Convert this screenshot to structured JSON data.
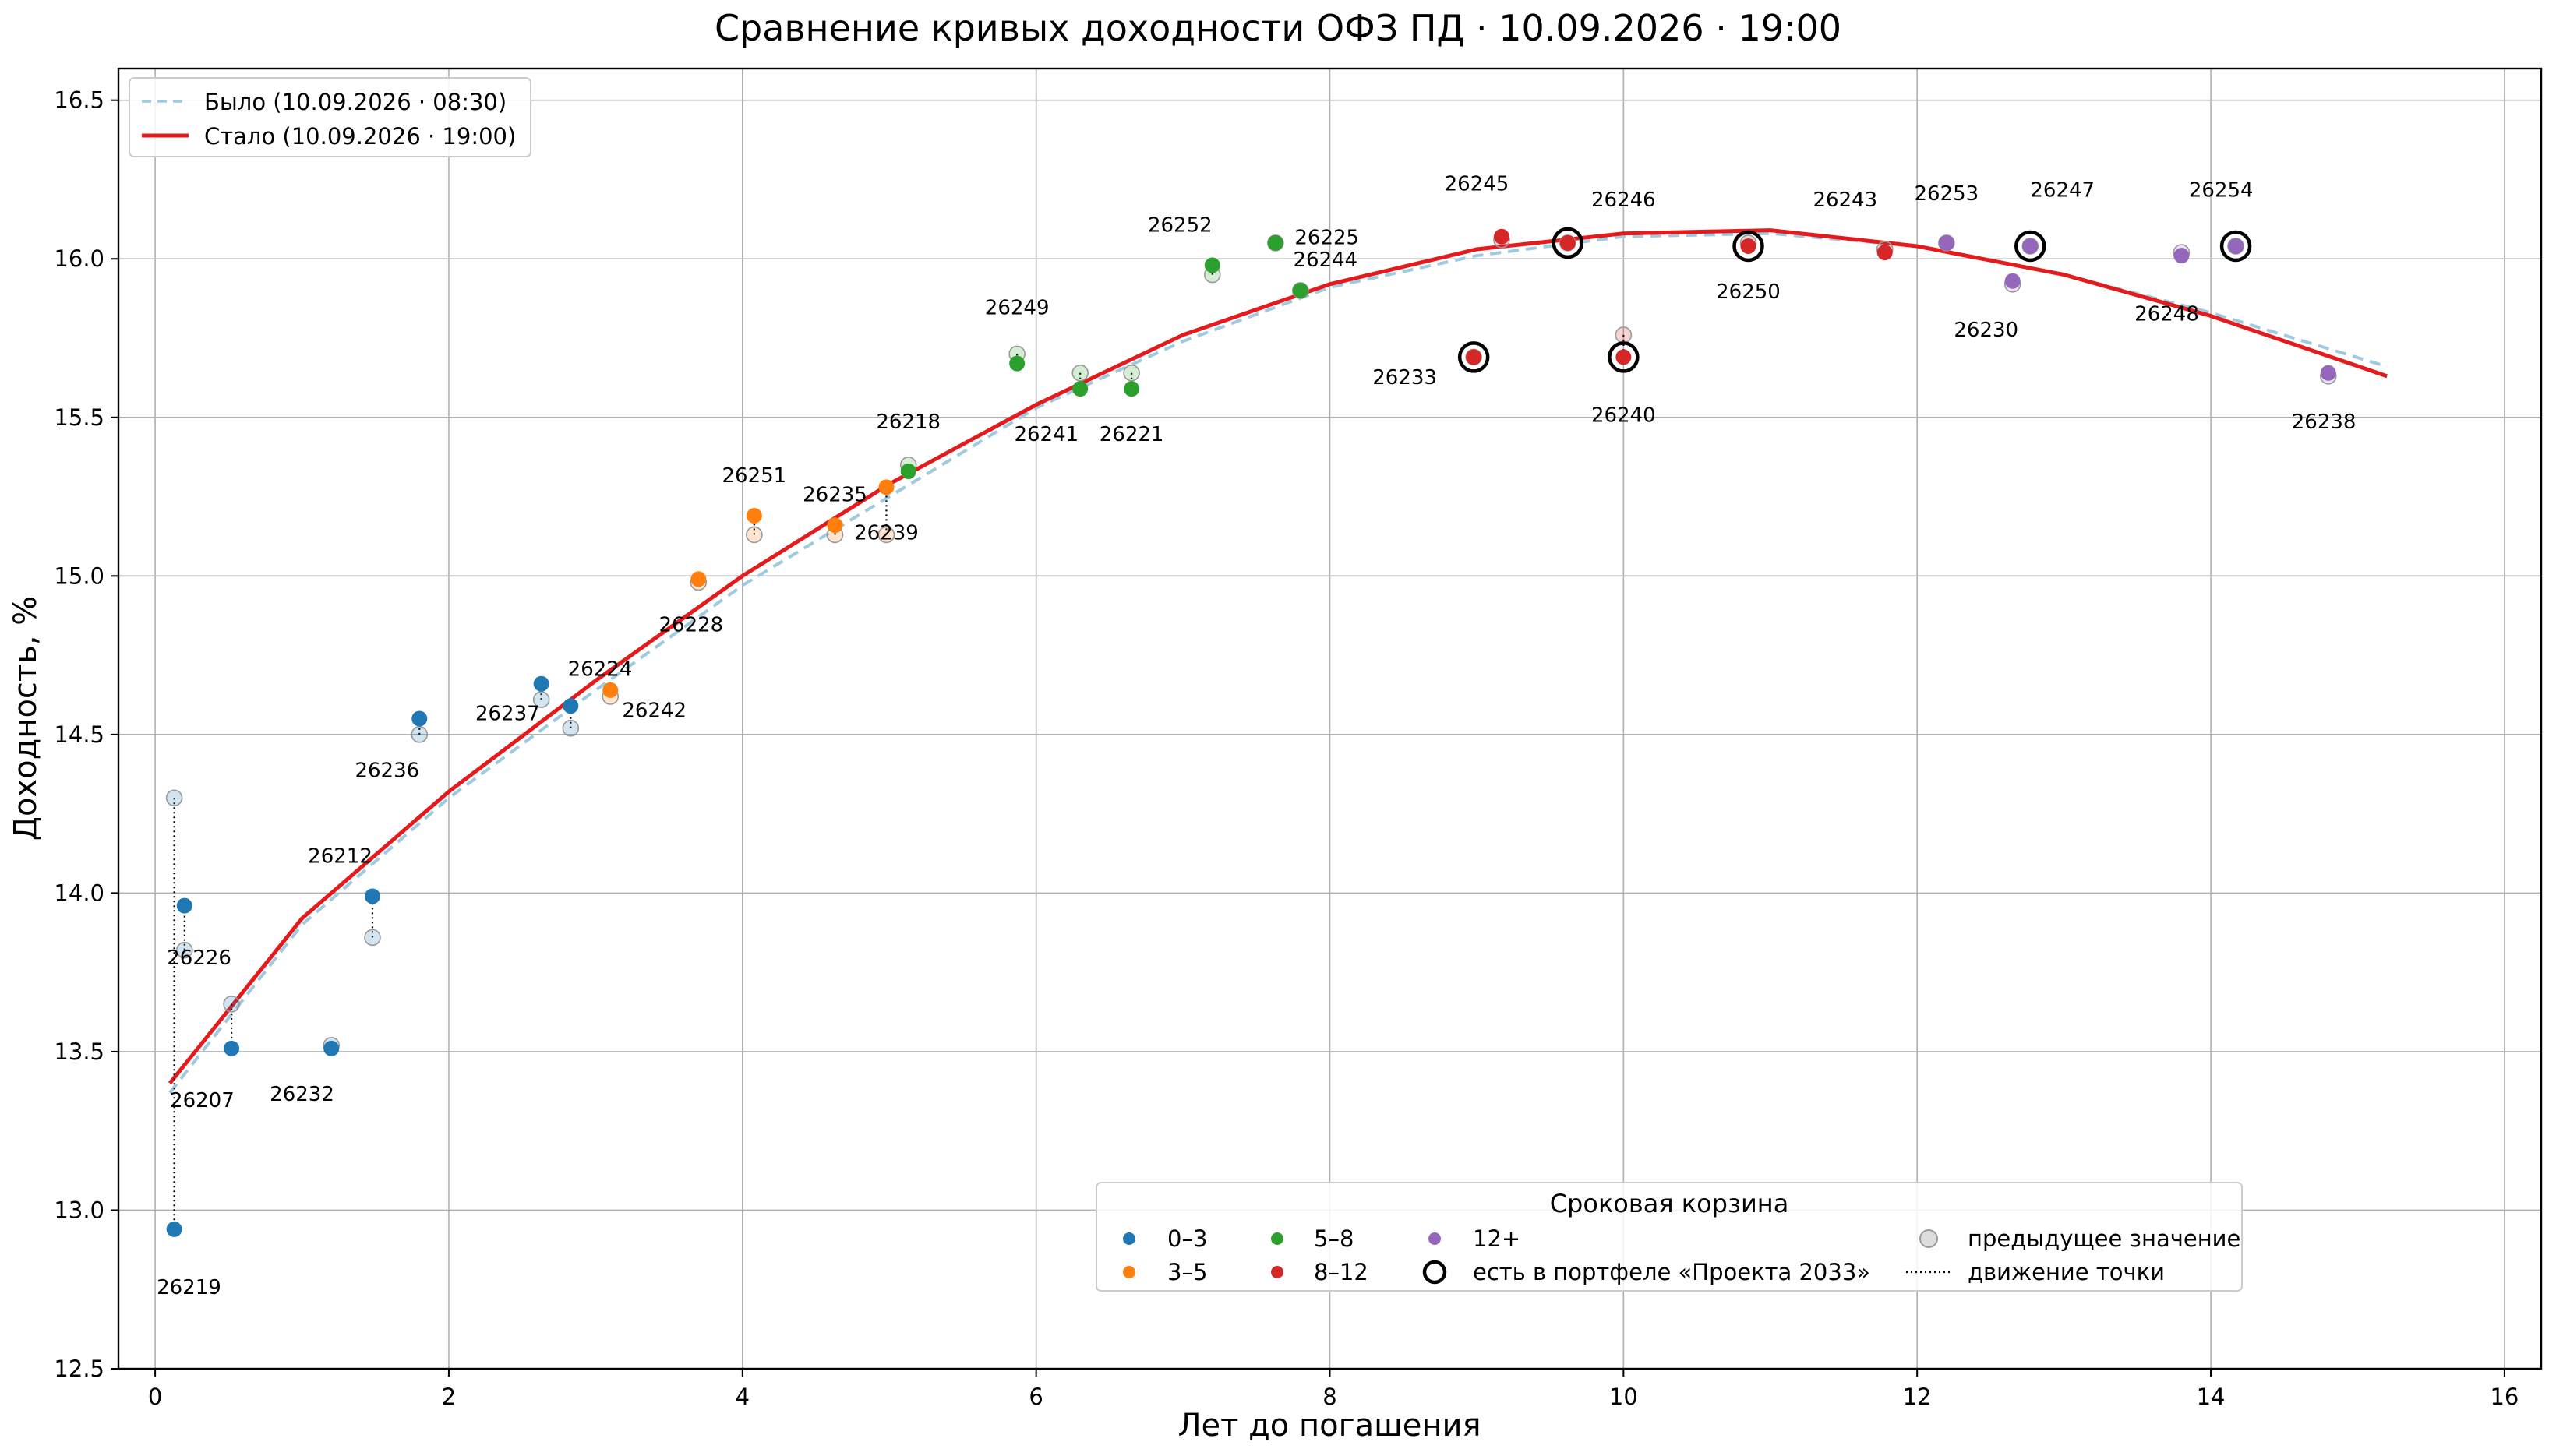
{
  "chart_data": {
    "type": "scatter",
    "title": "Сравнение кривых доходности ОФЗ ПД · 10.09.2026 · 19:00",
    "xlabel": "Лет до погашения",
    "ylabel": "Доходность, %",
    "xlim": [
      -0.25,
      16.25
    ],
    "ylim": [
      12.5,
      16.6
    ],
    "xticks": [
      0,
      2,
      4,
      6,
      8,
      10,
      12,
      14,
      16
    ],
    "yticks": [
      12.5,
      13.0,
      13.5,
      14.0,
      14.5,
      15.0,
      15.5,
      16.0,
      16.5
    ],
    "grid": true,
    "colors": {
      "0–3": "#1f77b4",
      "3–5": "#ff7f0e",
      "5–8": "#2ca02c",
      "8–12": "#d62728",
      "12+": "#9467bd"
    },
    "curves": [
      {
        "name": "Было (10.09.2026 · 08:30)",
        "style": "dashed",
        "color": "#9ecae1",
        "x": [
          0.1,
          1,
          2,
          3,
          4,
          5,
          6,
          7,
          8,
          9,
          10,
          11,
          12,
          13,
          14,
          15.2
        ],
        "y": [
          13.37,
          13.9,
          14.3,
          14.64,
          14.97,
          15.25,
          15.53,
          15.74,
          15.91,
          16.01,
          16.07,
          16.08,
          16.04,
          15.95,
          15.83,
          15.66
        ]
      },
      {
        "name": "Стало (10.09.2026 · 19:00)",
        "style": "solid",
        "color": "#e41a1c",
        "x": [
          0.1,
          1,
          2,
          3,
          4,
          5,
          6,
          7,
          8,
          9,
          10,
          11,
          12,
          13,
          14,
          15.2
        ],
        "y": [
          13.4,
          13.92,
          14.32,
          14.67,
          15.0,
          15.29,
          15.54,
          15.76,
          15.92,
          16.03,
          16.08,
          16.09,
          16.04,
          15.95,
          15.82,
          15.63
        ]
      }
    ],
    "points": [
      {
        "id": "26219",
        "group": "0–3",
        "x": 0.13,
        "y": 12.94,
        "prev": 14.3,
        "label_dx": 0.1,
        "label_dy": -0.18
      },
      {
        "id": "26226",
        "group": "0–3",
        "x": 0.2,
        "y": 13.96,
        "prev": 13.82,
        "label_dx": 0.1,
        "label_dy": -0.16
      },
      {
        "id": "26207",
        "group": "0–3",
        "x": 0.52,
        "y": 13.51,
        "prev": 13.65,
        "label_dx": -0.2,
        "label_dy": -0.16
      },
      {
        "id": "26232",
        "group": "0–3",
        "x": 1.2,
        "y": 13.51,
        "prev": 13.52,
        "label_dx": -0.2,
        "label_dy": -0.14
      },
      {
        "id": "26212",
        "group": "0–3",
        "x": 1.48,
        "y": 13.99,
        "prev": 13.86,
        "label_dx": -0.22,
        "label_dy": 0.13
      },
      {
        "id": "26236",
        "group": "0–3",
        "x": 1.8,
        "y": 14.55,
        "prev": 14.5,
        "label_dx": -0.22,
        "label_dy": -0.16
      },
      {
        "id": "26237",
        "group": "0–3",
        "x": 2.63,
        "y": 14.66,
        "prev": 14.61,
        "label_dx": -0.23,
        "label_dy": -0.09
      },
      {
        "id": "26224",
        "group": "0–3",
        "x": 2.83,
        "y": 14.59,
        "prev": 14.52,
        "label_dx": 0.2,
        "label_dy": 0.12
      },
      {
        "id": "26242",
        "group": "3–5",
        "x": 3.1,
        "y": 14.64,
        "prev": 14.62,
        "label_dx": 0.3,
        "label_dy": -0.06
      },
      {
        "id": "26228",
        "group": "3–5",
        "x": 3.7,
        "y": 14.99,
        "prev": 14.98,
        "label_dx": -0.05,
        "label_dy": -0.14
      },
      {
        "id": "26251",
        "group": "3–5",
        "x": 4.08,
        "y": 15.19,
        "prev": 15.13,
        "label_dx": 0.0,
        "label_dy": 0.13
      },
      {
        "id": "26235",
        "group": "3–5",
        "x": 4.63,
        "y": 15.16,
        "prev": 15.13,
        "label_dx": 0.0,
        "label_dy": 0.1
      },
      {
        "id": "26239",
        "group": "3–5",
        "x": 4.98,
        "y": 15.28,
        "prev": 15.13,
        "label_dx": 0.0,
        "label_dy": -0.14
      },
      {
        "id": "26218",
        "group": "5–8",
        "x": 5.13,
        "y": 15.33,
        "prev": 15.35,
        "label_dx": 0.0,
        "label_dy": 0.16
      },
      {
        "id": "26249",
        "group": "5–8",
        "x": 5.87,
        "y": 15.67,
        "prev": 15.7,
        "label_dx": 0.0,
        "label_dy": 0.18
      },
      {
        "id": "26241",
        "group": "5–8",
        "x": 6.3,
        "y": 15.59,
        "prev": 15.64,
        "label_dx": -0.23,
        "label_dy": -0.14
      },
      {
        "id": "26221",
        "group": "5–8",
        "x": 6.65,
        "y": 15.59,
        "prev": 15.64,
        "label_dx": 0.0,
        "label_dy": -0.14
      },
      {
        "id": "26252",
        "group": "5–8",
        "x": 7.2,
        "y": 15.98,
        "prev": 15.95,
        "label_dx": -0.22,
        "label_dy": 0.13
      },
      {
        "id": "26225",
        "group": "5–8",
        "x": 7.63,
        "y": 16.05,
        "prev": 16.05,
        "label_dx": 0.35,
        "label_dy": 0.02
      },
      {
        "id": "26244",
        "group": "5–8",
        "x": 7.8,
        "y": 15.9,
        "prev": 15.9,
        "label_dx": 0.17,
        "label_dy": 0.1
      },
      {
        "id": "26233",
        "group": "8–12",
        "x": 8.98,
        "y": 15.69,
        "prev": 15.69,
        "label_dx": -0.47,
        "label_dy": -0.06,
        "portfolio": true
      },
      {
        "id": "26245",
        "group": "8–12",
        "x": 9.17,
        "y": 16.07,
        "prev": 16.06,
        "label_dx": -0.17,
        "label_dy": 0.17
      },
      {
        "id": "26246",
        "group": "8–12",
        "x": 9.62,
        "y": 16.05,
        "prev": 16.05,
        "label_dx": 0.38,
        "label_dy": 0.14,
        "portfolio": true
      },
      {
        "id": "26240",
        "group": "8–12",
        "x": 10.0,
        "y": 15.69,
        "prev": 15.76,
        "label_dx": 0.0,
        "label_dy": -0.18,
        "portfolio": true
      },
      {
        "id": "26250",
        "group": "8–12",
        "x": 10.85,
        "y": 16.04,
        "prev": 16.05,
        "label_dx": 0.0,
        "label_dy": -0.14,
        "portfolio": true
      },
      {
        "id": "26243",
        "group": "8–12",
        "x": 11.78,
        "y": 16.02,
        "prev": 16.03,
        "label_dx": -0.27,
        "label_dy": 0.17
      },
      {
        "id": "26253",
        "group": "12+",
        "x": 12.2,
        "y": 16.05,
        "prev": 16.05,
        "label_dx": 0.0,
        "label_dy": 0.16
      },
      {
        "id": "26230",
        "group": "12+",
        "x": 12.65,
        "y": 15.93,
        "prev": 15.92,
        "label_dx": -0.18,
        "label_dy": -0.15
      },
      {
        "id": "26247",
        "group": "12+",
        "x": 12.77,
        "y": 16.04,
        "prev": 16.04,
        "label_dx": 0.22,
        "label_dy": 0.18,
        "portfolio": true
      },
      {
        "id": "26248",
        "group": "12+",
        "x": 13.8,
        "y": 16.01,
        "prev": 16.02,
        "label_dx": -0.1,
        "label_dy": -0.18
      },
      {
        "id": "26254",
        "group": "12+",
        "x": 14.17,
        "y": 16.04,
        "prev": 16.04,
        "label_dx": -0.1,
        "label_dy": 0.18,
        "portfolio": true
      },
      {
        "id": "26238",
        "group": "12+",
        "x": 14.8,
        "y": 15.64,
        "prev": 15.63,
        "label_dx": -0.03,
        "label_dy": -0.15
      }
    ],
    "legend_curves": {
      "items": [
        "Было (10.09.2026 · 08:30)",
        "Стало (10.09.2026 · 19:00)"
      ],
      "placement": "top-left"
    },
    "legend_groups": {
      "title": "Сроковая корзина",
      "groups": [
        "0–3",
        "3–5",
        "5–8",
        "8–12",
        "12+"
      ],
      "portfolio_label": "есть в портфеле «Проекта 2033»",
      "prev_label": "предыдущее значение",
      "move_label": "движение точки",
      "placement": "lower-right"
    }
  }
}
